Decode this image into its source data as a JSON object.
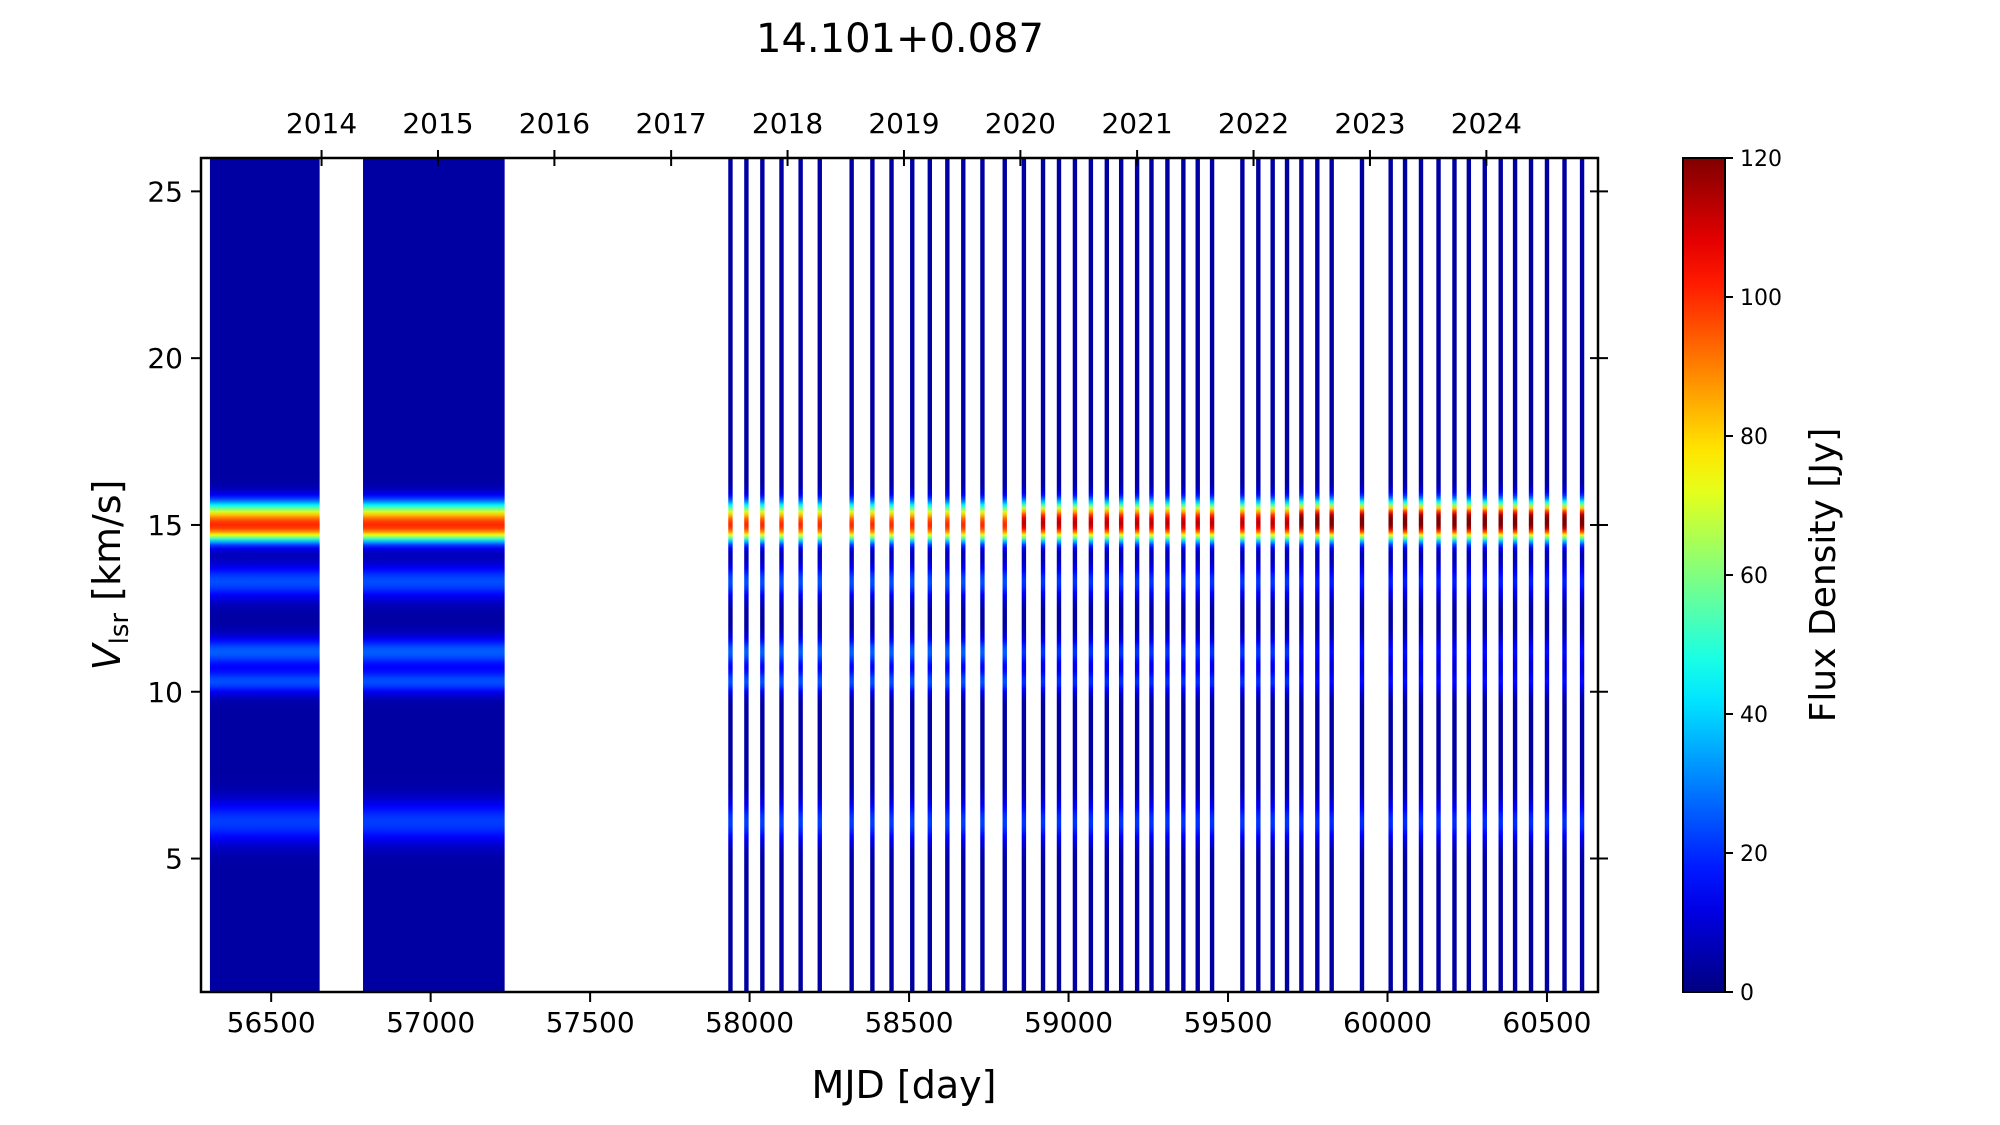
{
  "chart_data": {
    "type": "heatmap",
    "title": "14.101+0.087",
    "xlabel": "MJD [day]",
    "ylabel_main": "V",
    "ylabel_sub": "lsr",
    "ylabel_rest": " [km/s]",
    "colorbar_label": "Flux Density [Jy]",
    "colormap": "jet",
    "xlim": [
      56280,
      60660
    ],
    "ylim": [
      1,
      26
    ],
    "clim": [
      0,
      120
    ],
    "x_ticks": [
      56500,
      57000,
      57500,
      58000,
      58500,
      59000,
      59500,
      60000,
      60500
    ],
    "y_ticks": [
      5,
      10,
      15,
      20,
      25
    ],
    "colorbar_ticks": [
      0,
      20,
      40,
      60,
      80,
      100,
      120
    ],
    "top_axis_years": [
      {
        "label": "2014",
        "mjd": 56658
      },
      {
        "label": "2015",
        "mjd": 57023
      },
      {
        "label": "2016",
        "mjd": 57388
      },
      {
        "label": "2017",
        "mjd": 57754
      },
      {
        "label": "2018",
        "mjd": 58119
      },
      {
        "label": "2019",
        "mjd": 58484
      },
      {
        "label": "2020",
        "mjd": 58849
      },
      {
        "label": "2021",
        "mjd": 59215
      },
      {
        "label": "2022",
        "mjd": 59580
      },
      {
        "label": "2023",
        "mjd": 59945
      },
      {
        "label": "2024",
        "mjd": 60310
      }
    ],
    "dense_blocks": [
      [
        56308,
        56652
      ],
      [
        56788,
        57232
      ]
    ],
    "sparse_epochs": [
      57940,
      57990,
      58040,
      58100,
      58160,
      58220,
      58320,
      58385,
      58445,
      58510,
      58565,
      58620,
      58670,
      58730,
      58800,
      58860,
      58920,
      58970,
      59020,
      59070,
      59120,
      59165,
      59215,
      59260,
      59310,
      59360,
      59405,
      59450,
      59545,
      59595,
      59640,
      59685,
      59730,
      59780,
      59825,
      59920,
      60010,
      60055,
      60105,
      60160,
      60210,
      60255,
      60305,
      60355,
      60400,
      60450,
      60500,
      60555,
      60610
    ],
    "spectral_features": [
      {
        "velocity": 15.2,
        "width": 0.35,
        "peak_flux_early": 75,
        "peak_flux_late": 110
      },
      {
        "velocity": 14.8,
        "width": 0.25,
        "peak_flux_early": 45,
        "peak_flux_late": 35
      },
      {
        "velocity": 13.3,
        "width": 0.35,
        "peak_flux_early": 20,
        "peak_flux_late": 14
      },
      {
        "velocity": 11.2,
        "width": 0.3,
        "peak_flux_early": 22,
        "peak_flux_late": 12
      },
      {
        "velocity": 10.3,
        "width": 0.25,
        "peak_flux_early": 20,
        "peak_flux_late": 12
      },
      {
        "velocity": 6.1,
        "width": 0.45,
        "peak_flux_early": 18,
        "peak_flux_late": 16
      }
    ],
    "baseline_flux": 4
  }
}
